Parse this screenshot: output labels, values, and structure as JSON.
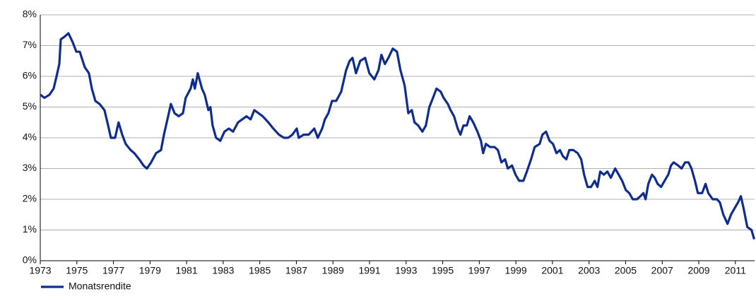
{
  "chart_data": {
    "type": "line",
    "x": [
      1973.0,
      1973.23,
      1973.5,
      1973.73,
      1973.89,
      1974.04,
      1974.12,
      1974.35,
      1974.54,
      1974.78,
      1974.97,
      1975.16,
      1975.43,
      1975.66,
      1975.82,
      1976.01,
      1976.24,
      1976.51,
      1976.71,
      1976.86,
      1977.09,
      1977.28,
      1977.48,
      1977.67,
      1977.94,
      1978.14,
      1978.41,
      1978.64,
      1978.83,
      1979.06,
      1979.33,
      1979.6,
      1979.76,
      1979.99,
      1980.14,
      1980.34,
      1980.57,
      1980.8,
      1980.95,
      1981.22,
      1981.34,
      1981.45,
      1981.61,
      1981.84,
      1981.99,
      1982.19,
      1982.3,
      1982.42,
      1982.61,
      1982.84,
      1983.07,
      1983.31,
      1983.54,
      1983.81,
      1984.04,
      1984.27,
      1984.5,
      1984.7,
      1984.93,
      1985.16,
      1985.47,
      1985.74,
      1986.05,
      1986.32,
      1986.55,
      1986.78,
      1987.02,
      1987.13,
      1987.4,
      1987.67,
      1987.98,
      1988.17,
      1988.41,
      1988.56,
      1988.75,
      1988.95,
      1989.18,
      1989.45,
      1989.72,
      1989.91,
      1990.07,
      1990.26,
      1990.49,
      1990.76,
      1990.99,
      1991.26,
      1991.49,
      1991.65,
      1991.84,
      1992.03,
      1992.27,
      1992.5,
      1992.69,
      1992.92,
      1993.12,
      1993.31,
      1993.46,
      1993.66,
      1993.89,
      1994.08,
      1994.27,
      1994.47,
      1994.66,
      1994.89,
      1995.05,
      1995.28,
      1995.43,
      1995.62,
      1995.82,
      1995.97,
      1996.13,
      1996.32,
      1996.47,
      1996.67,
      1996.9,
      1997.09,
      1997.21,
      1997.36,
      1997.59,
      1997.83,
      1998.02,
      1998.21,
      1998.41,
      1998.56,
      1998.79,
      1998.98,
      1999.18,
      1999.41,
      1999.6,
      1999.83,
      2000.03,
      2000.3,
      2000.45,
      2000.65,
      2000.84,
      2001.03,
      2001.22,
      2001.41,
      2001.57,
      2001.76,
      2001.92,
      2002.14,
      2002.38,
      2002.57,
      2002.73,
      2002.92,
      2003.11,
      2003.31,
      2003.46,
      2003.61,
      2003.81,
      2004.0,
      2004.19,
      2004.43,
      2004.62,
      2004.81,
      2005.01,
      2005.2,
      2005.39,
      2005.62,
      2005.81,
      2005.97,
      2006.09,
      2006.24,
      2006.44,
      2006.59,
      2006.75,
      2006.94,
      2007.13,
      2007.33,
      2007.48,
      2007.63,
      2007.87,
      2008.06,
      2008.25,
      2008.44,
      2008.6,
      2008.79,
      2008.95,
      2009.18,
      2009.37,
      2009.52,
      2009.76,
      2009.99,
      2010.15,
      2010.34,
      2010.57,
      2010.76,
      2010.95,
      2011.15,
      2011.3,
      2011.45,
      2011.65,
      2011.88,
      2012.03
    ],
    "series": [
      {
        "name": "Monatsrendite",
        "color": "#0f2d8f",
        "values": [
          5.4,
          5.3,
          5.4,
          5.6,
          6.0,
          6.4,
          7.2,
          7.3,
          7.4,
          7.1,
          6.8,
          6.8,
          6.3,
          6.1,
          5.6,
          5.2,
          5.1,
          4.9,
          4.4,
          4.0,
          4.0,
          4.5,
          4.1,
          3.8,
          3.6,
          3.5,
          3.3,
          3.1,
          3.0,
          3.2,
          3.5,
          3.6,
          4.1,
          4.7,
          5.1,
          4.8,
          4.7,
          4.8,
          5.3,
          5.6,
          5.9,
          5.6,
          6.1,
          5.6,
          5.4,
          4.9,
          5.0,
          4.4,
          4.0,
          3.9,
          4.2,
          4.3,
          4.2,
          4.5,
          4.6,
          4.7,
          4.6,
          4.9,
          4.8,
          4.7,
          4.5,
          4.3,
          4.1,
          4.0,
          4.0,
          4.1,
          4.3,
          4.0,
          4.1,
          4.1,
          4.3,
          4.0,
          4.3,
          4.6,
          4.8,
          5.2,
          5.2,
          5.5,
          6.2,
          6.5,
          6.6,
          6.1,
          6.5,
          6.6,
          6.1,
          5.9,
          6.2,
          6.7,
          6.4,
          6.6,
          6.9,
          6.8,
          6.2,
          5.7,
          4.8,
          4.9,
          4.5,
          4.4,
          4.2,
          4.4,
          5.0,
          5.3,
          5.6,
          5.5,
          5.3,
          5.1,
          4.9,
          4.7,
          4.3,
          4.1,
          4.4,
          4.4,
          4.7,
          4.5,
          4.2,
          3.9,
          3.5,
          3.8,
          3.7,
          3.7,
          3.6,
          3.2,
          3.3,
          3.0,
          3.1,
          2.8,
          2.6,
          2.6,
          2.9,
          3.3,
          3.7,
          3.8,
          4.1,
          4.2,
          3.9,
          3.8,
          3.5,
          3.6,
          3.4,
          3.3,
          3.6,
          3.6,
          3.5,
          3.3,
          2.8,
          2.4,
          2.4,
          2.6,
          2.4,
          2.9,
          2.8,
          2.9,
          2.7,
          3.0,
          2.8,
          2.6,
          2.3,
          2.2,
          2.0,
          2.0,
          2.1,
          2.2,
          2.0,
          2.5,
          2.8,
          2.7,
          2.5,
          2.4,
          2.6,
          2.8,
          3.1,
          3.2,
          3.1,
          3.0,
          3.2,
          3.2,
          3.0,
          2.6,
          2.2,
          2.2,
          2.5,
          2.2,
          2.0,
          2.0,
          1.9,
          1.5,
          1.2,
          1.5,
          1.7,
          1.9,
          2.1,
          1.7,
          1.1,
          1.0,
          0.7
        ]
      }
    ],
    "xlim": [
      1973,
      2012.05
    ],
    "xticks": [
      1973,
      1975,
      1977,
      1979,
      1981,
      1983,
      1985,
      1987,
      1989,
      1991,
      1993,
      1995,
      1997,
      1999,
      2001,
      2003,
      2005,
      2007,
      2009,
      2011
    ],
    "ylim": [
      0,
      8
    ],
    "yticks": [
      {
        "value": 0,
        "label": "0%"
      },
      {
        "value": 1,
        "label": "1%"
      },
      {
        "value": 2,
        "label": "2%"
      },
      {
        "value": 3,
        "label": "3%"
      },
      {
        "value": 4,
        "label": "4%"
      },
      {
        "value": 5,
        "label": "5%"
      },
      {
        "value": 6,
        "label": "6%"
      },
      {
        "value": 7,
        "label": "7%"
      },
      {
        "value": 8,
        "label": "8%"
      }
    ],
    "grid": true
  }
}
